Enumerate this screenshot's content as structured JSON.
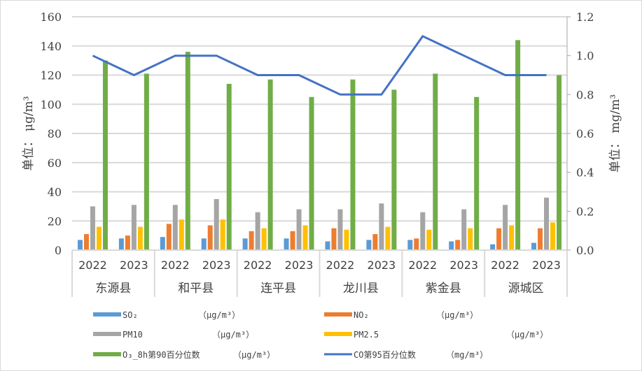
{
  "chart_data": {
    "type": "bar",
    "title": "",
    "groups": [
      "东源县",
      "和平县",
      "连平县",
      "龙川县",
      "紫金县",
      "源城区"
    ],
    "years": [
      "2022",
      "2023"
    ],
    "categories": [
      "东源县 2022",
      "东源县 2023",
      "和平县 2022",
      "和平县 2023",
      "连平县 2022",
      "连平县 2023",
      "龙川县 2022",
      "龙川县 2023",
      "紫金县 2022",
      "紫金县 2023",
      "源城区 2022",
      "源城区 2023"
    ],
    "ylabel": "单位： μg/m³",
    "y2label": "单位： mg/m³",
    "ylim": [
      0,
      160
    ],
    "yticks": [
      "0",
      "20",
      "40",
      "60",
      "80",
      "100",
      "120",
      "140",
      "160"
    ],
    "y2lim": [
      0,
      1.2
    ],
    "y2ticks": [
      "0.0",
      "0.2",
      "0.4",
      "0.6",
      "0.8",
      "1.0",
      "1.2"
    ],
    "grid": true,
    "legend_position": "bottom",
    "series": [
      {
        "name": "SO₂ (μg/m³)",
        "type": "bar",
        "axis": "left",
        "color": "#5B9BD5",
        "values": [
          7,
          8,
          9,
          8,
          8,
          8,
          6,
          7,
          7,
          6,
          4,
          5
        ]
      },
      {
        "name": "NO₂ (μg/m³)",
        "type": "bar",
        "axis": "left",
        "color": "#ED7D31",
        "values": [
          11,
          10,
          18,
          17,
          13,
          13,
          15,
          11,
          8,
          7,
          15,
          15
        ]
      },
      {
        "name": "PM10 (μg/m³)",
        "type": "bar",
        "axis": "left",
        "color": "#A5A5A5",
        "values": [
          30,
          31,
          31,
          35,
          26,
          28,
          28,
          32,
          26,
          28,
          31,
          36
        ]
      },
      {
        "name": "PM2.5 (μg/m³)",
        "type": "bar",
        "axis": "left",
        "color": "#FFC000",
        "values": [
          16,
          16,
          21,
          21,
          15,
          17,
          14,
          16,
          14,
          15,
          17,
          19
        ]
      },
      {
        "name": "O₃_8h第90百分位数 (μg/m³)",
        "type": "bar",
        "axis": "left",
        "color": "#70AD47",
        "values": [
          130,
          121,
          136,
          114,
          117,
          105,
          117,
          110,
          121,
          105,
          144,
          120
        ]
      },
      {
        "name": "CO第95百分位数 (mg/m³)",
        "type": "line",
        "axis": "right",
        "color": "#4472C4",
        "values": [
          1.0,
          0.9,
          1.0,
          1.0,
          0.9,
          0.9,
          0.8,
          0.8,
          1.1,
          1.0,
          0.9,
          0.9
        ]
      }
    ]
  },
  "legend": [
    {
      "key": "so2",
      "name": "SO₂",
      "unit": "（μg/m³）",
      "color": "#5B9BD5",
      "kind": "bar"
    },
    {
      "key": "no2",
      "name": "NO₂",
      "unit": "（μg/m³）",
      "color": "#ED7D31",
      "kind": "bar"
    },
    {
      "key": "pm10",
      "name": "PM10",
      "unit": "（μg/m³）",
      "color": "#A5A5A5",
      "kind": "bar"
    },
    {
      "key": "pm25",
      "name": "PM2.5",
      "unit": "（μg/m³）",
      "color": "#FFC000",
      "kind": "bar"
    },
    {
      "key": "o3",
      "name": "O₃_8h第90百分位数",
      "unit": "（μg/m³）",
      "color": "#70AD47",
      "kind": "bar"
    },
    {
      "key": "co",
      "name": "CO第95百分位数",
      "unit": "（mg/m³）",
      "color": "#4472C4",
      "kind": "line"
    }
  ]
}
